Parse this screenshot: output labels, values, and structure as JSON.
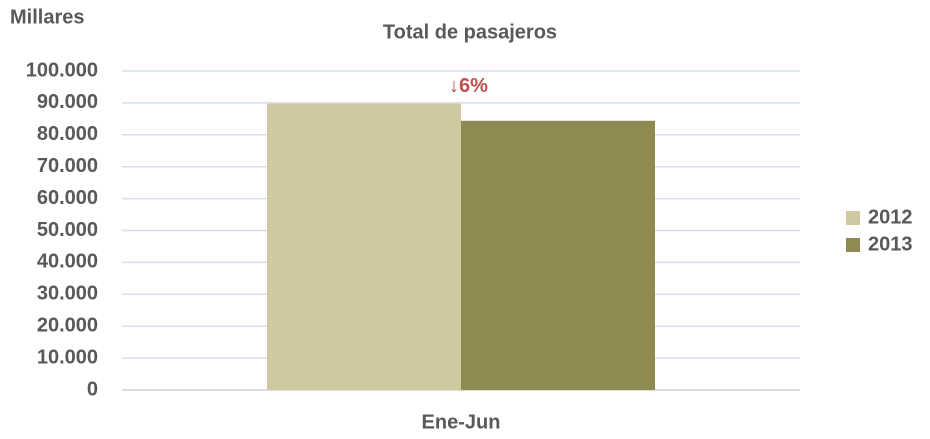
{
  "chart_data": {
    "type": "bar",
    "title": "Total de pasajeros",
    "y_label": "Millares",
    "categories": [
      "Ene-Jun"
    ],
    "series": [
      {
        "name": "2012",
        "color": "#d0c99f",
        "values": [
          89800
        ]
      },
      {
        "name": "2013",
        "color": "#8f8a52",
        "values": [
          84400
        ]
      }
    ],
    "annotation": "↓6%",
    "ylim": [
      0,
      100000
    ],
    "yticks": [
      0,
      {
        "value": 10000,
        "label": "10.000"
      },
      {
        "value": 20000,
        "label": "20.000"
      },
      {
        "value": 30000,
        "label": "30.000"
      },
      {
        "value": 40000,
        "label": "40.000"
      },
      {
        "value": 50000,
        "label": "50.000"
      },
      {
        "value": 60000,
        "label": "60.000"
      },
      {
        "value": 70000,
        "label": "70.000"
      },
      {
        "value": 80000,
        "label": "80.000"
      },
      {
        "value": 90000,
        "label": "90.000"
      },
      {
        "value": 100000,
        "label": "100.000"
      }
    ],
    "grid": true,
    "legend": "right"
  }
}
